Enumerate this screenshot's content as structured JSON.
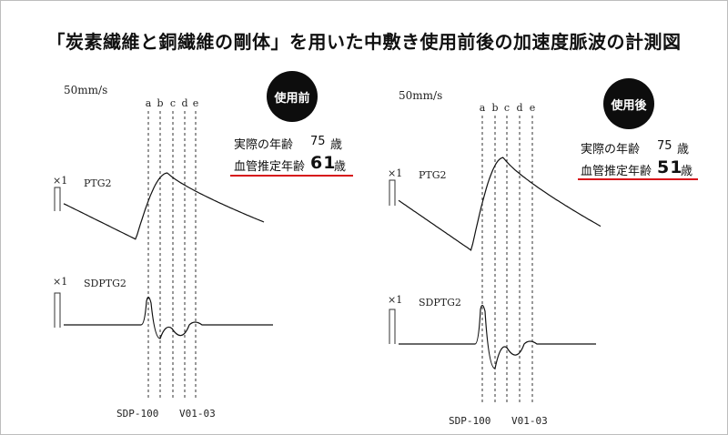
{
  "title": "「炭素繊維と銅繊維の剛体」を用いた中敷き使用前後の加速度脈波の計測図",
  "colors": {
    "badge": "#0d0d0d",
    "underline": "#d7141a",
    "trace": "#111111"
  },
  "chart_data": [
    {
      "type": "line",
      "panel": "before",
      "badge": "使用前",
      "speed": "50mm/s",
      "markers": [
        "a",
        "b",
        "c",
        "d",
        "e"
      ],
      "actual_age_label": "実際の年齢",
      "actual_age": "75",
      "age_unit": "歳",
      "vascular_age_label": "血管推定年齢",
      "vascular_age": "61",
      "gain_top": "×1",
      "series_top": "PTG2",
      "gain_bottom": "×1",
      "series_bottom": "SDPTG2",
      "device": "SDP-100",
      "version": "V01-03"
    },
    {
      "type": "line",
      "panel": "after",
      "badge": "使用後",
      "speed": "50mm/s",
      "markers": [
        "a",
        "b",
        "c",
        "d",
        "e"
      ],
      "actual_age_label": "実際の年齢",
      "actual_age": "75",
      "age_unit": "歳",
      "vascular_age_label": "血管推定年齢",
      "vascular_age": "51",
      "gain_top": "×1",
      "series_top": "PTG2",
      "gain_bottom": "×1",
      "series_bottom": "SDPTG2",
      "device": "SDP-100",
      "version": "V01-03"
    }
  ]
}
